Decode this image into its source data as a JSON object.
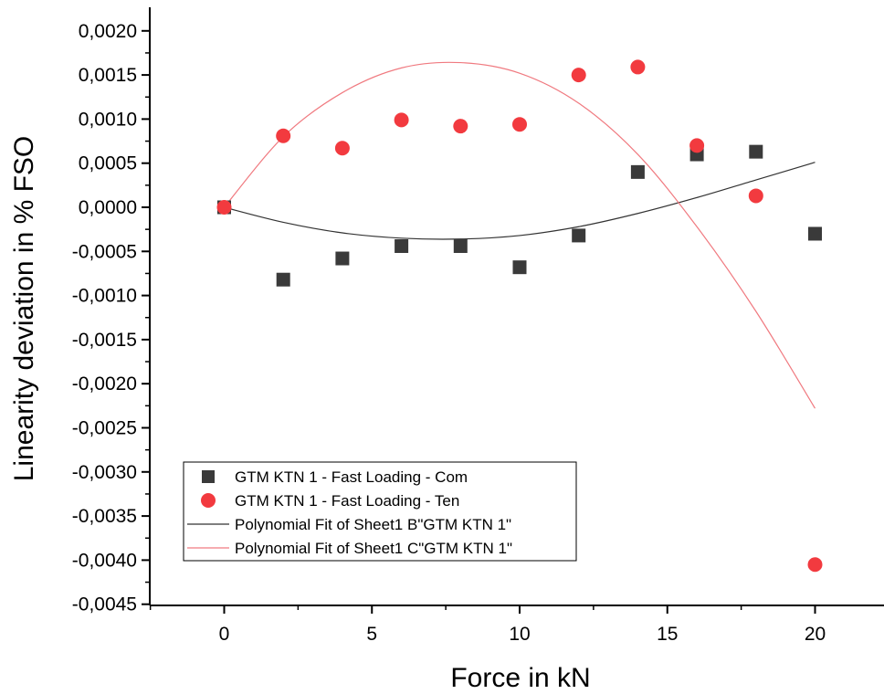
{
  "chart_data": {
    "type": "scatter",
    "title": "",
    "xlabel": "Force in kN",
    "ylabel": "Linearity deviation in % FSO",
    "xlim": [
      -2.5,
      22.5
    ],
    "ylim": [
      -0.0045,
      0.0022
    ],
    "x_ticks": [
      0,
      5,
      10,
      15,
      20
    ],
    "x_tick_labels": [
      "0",
      "5",
      "10",
      "15",
      "20"
    ],
    "y_ticks": [
      0.002,
      0.0015,
      0.001,
      0.0005,
      0.0,
      -0.0005,
      -0.001,
      -0.0015,
      -0.002,
      -0.0025,
      -0.003,
      -0.0035,
      -0.004,
      -0.0045
    ],
    "y_tick_labels": [
      "0,0020",
      "0,0015",
      "0,0010",
      "0,0005",
      "0,0000",
      "-0,0005",
      "-0,0010",
      "-0,0015",
      "-0,0020",
      "-0,0025",
      "-0,0030",
      "-0,0035",
      "-0,0040",
      "-0,0045"
    ],
    "grid": false,
    "legend_position": "bottom-left",
    "series": [
      {
        "name": "GTM KTN 1 - Fast Loading - Com",
        "kind": "scatter",
        "marker": "square",
        "color": "#3a3a3a",
        "x": [
          0,
          2,
          4,
          6,
          8,
          10,
          12,
          14,
          16,
          18,
          20
        ],
        "y": [
          0.0,
          -0.00082,
          -0.00058,
          -0.00044,
          -0.00044,
          -0.00068,
          -0.00032,
          0.0004,
          0.0006,
          0.00063,
          -0.0003
        ]
      },
      {
        "name": "GTM KTN 1 - Fast Loading - Ten",
        "kind": "scatter",
        "marker": "circle",
        "color": "#f23a3f",
        "x": [
          0,
          2,
          4,
          6,
          8,
          10,
          12,
          14,
          16,
          18,
          20
        ],
        "y": [
          0.0,
          0.00081,
          0.00067,
          0.00099,
          0.00092,
          0.00094,
          0.0015,
          0.00159,
          0.0007,
          0.00013,
          -0.00405
        ]
      },
      {
        "name": "Polynomial Fit of Sheet1 B\"GTM KTN 1\"",
        "kind": "line",
        "color": "#333333",
        "x": [
          0,
          2,
          4,
          6,
          8,
          10,
          12,
          14,
          16,
          18,
          20
        ],
        "y": [
          0.0,
          -0.00017,
          -0.00029,
          -0.00035,
          -0.00036,
          -0.00032,
          -0.00022,
          -7e-05,
          0.00011,
          0.00031,
          0.00051
        ]
      },
      {
        "name": "Polynomial Fit of Sheet1 C\"GTM KTN 1\"",
        "kind": "line",
        "color": "#f07a80",
        "x": [
          0,
          2,
          4,
          6,
          8,
          10,
          12,
          14,
          16,
          18,
          20
        ],
        "y": [
          0.0,
          0.0008,
          0.0013,
          0.00158,
          0.00164,
          0.00152,
          0.00118,
          0.0006,
          -0.00022,
          -0.00118,
          -0.00228
        ]
      }
    ]
  }
}
